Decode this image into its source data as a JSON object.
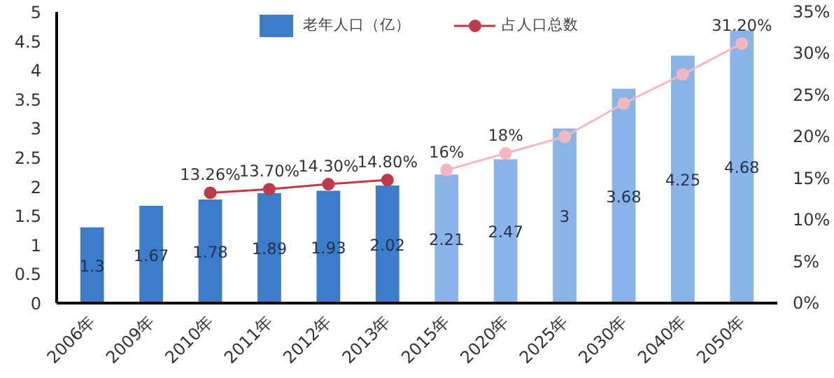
{
  "chart_data": {
    "type": "bar",
    "categories": [
      "2006年",
      "2009年",
      "2010年",
      "2011年",
      "2012年",
      "2013年",
      "2015年",
      "2020年",
      "2025年",
      "2030年",
      "2040年",
      "2050年"
    ],
    "series": [
      {
        "name": "老年人口（亿）",
        "colors": [
          "#3d7cc9",
          "#3d7cc9",
          "#3d7cc9",
          "#3d7cc9",
          "#3d7cc9",
          "#3d7cc9",
          "#8ab4e8",
          "#8ab4e8",
          "#8ab4e8",
          "#8ab4e8",
          "#8ab4e8",
          "#8ab4e8"
        ],
        "values": [
          1.3,
          1.67,
          1.78,
          1.89,
          1.93,
          2.02,
          2.21,
          2.47,
          3,
          3.68,
          4.25,
          4.68
        ],
        "value_labels": [
          "1.3",
          "1.67",
          "1.78",
          "1.89",
          "1.93",
          "2.02",
          "2.21",
          "2.47",
          "3",
          "3.68",
          "4.25",
          "4.68"
        ]
      },
      {
        "name": "占人口总数",
        "type": "line",
        "axis": "y2",
        "color": "#c0394b",
        "values": [
          null,
          null,
          13.26,
          13.7,
          14.3,
          14.8,
          null,
          null,
          null,
          null,
          null,
          null
        ],
        "value_labels": [
          null,
          null,
          "13.26%",
          "13.70%",
          "14.30%",
          "14.80%",
          null,
          null,
          null,
          null,
          null,
          null
        ]
      },
      {
        "type": "line",
        "axis": "y2",
        "color": "#f2b8c2",
        "values": [
          null,
          null,
          null,
          null,
          null,
          null,
          16,
          18,
          20,
          24,
          27.5,
          31.2
        ],
        "value_labels": [
          null,
          null,
          null,
          null,
          null,
          null,
          "16%",
          "18%",
          null,
          null,
          null,
          "31.20%"
        ]
      }
    ],
    "ylim": [
      0,
      5
    ],
    "yticks": [
      0,
      0.5,
      1,
      1.5,
      2,
      2.5,
      3,
      3.5,
      4,
      4.5,
      5
    ],
    "y2lim": [
      0,
      35
    ],
    "y2ticks": [
      {
        "value": 0,
        "label": "0%"
      },
      {
        "value": 5,
        "label": "5%"
      },
      {
        "value": 10,
        "label": "10%"
      },
      {
        "value": 15,
        "label": "15%"
      },
      {
        "value": 20,
        "label": "20%"
      },
      {
        "value": 25,
        "label": "25%"
      },
      {
        "value": 30,
        "label": "30%"
      },
      {
        "value": 35,
        "label": "35%"
      }
    ],
    "marker": "circle",
    "line_style": "solid",
    "grid": false,
    "legend": "top"
  }
}
